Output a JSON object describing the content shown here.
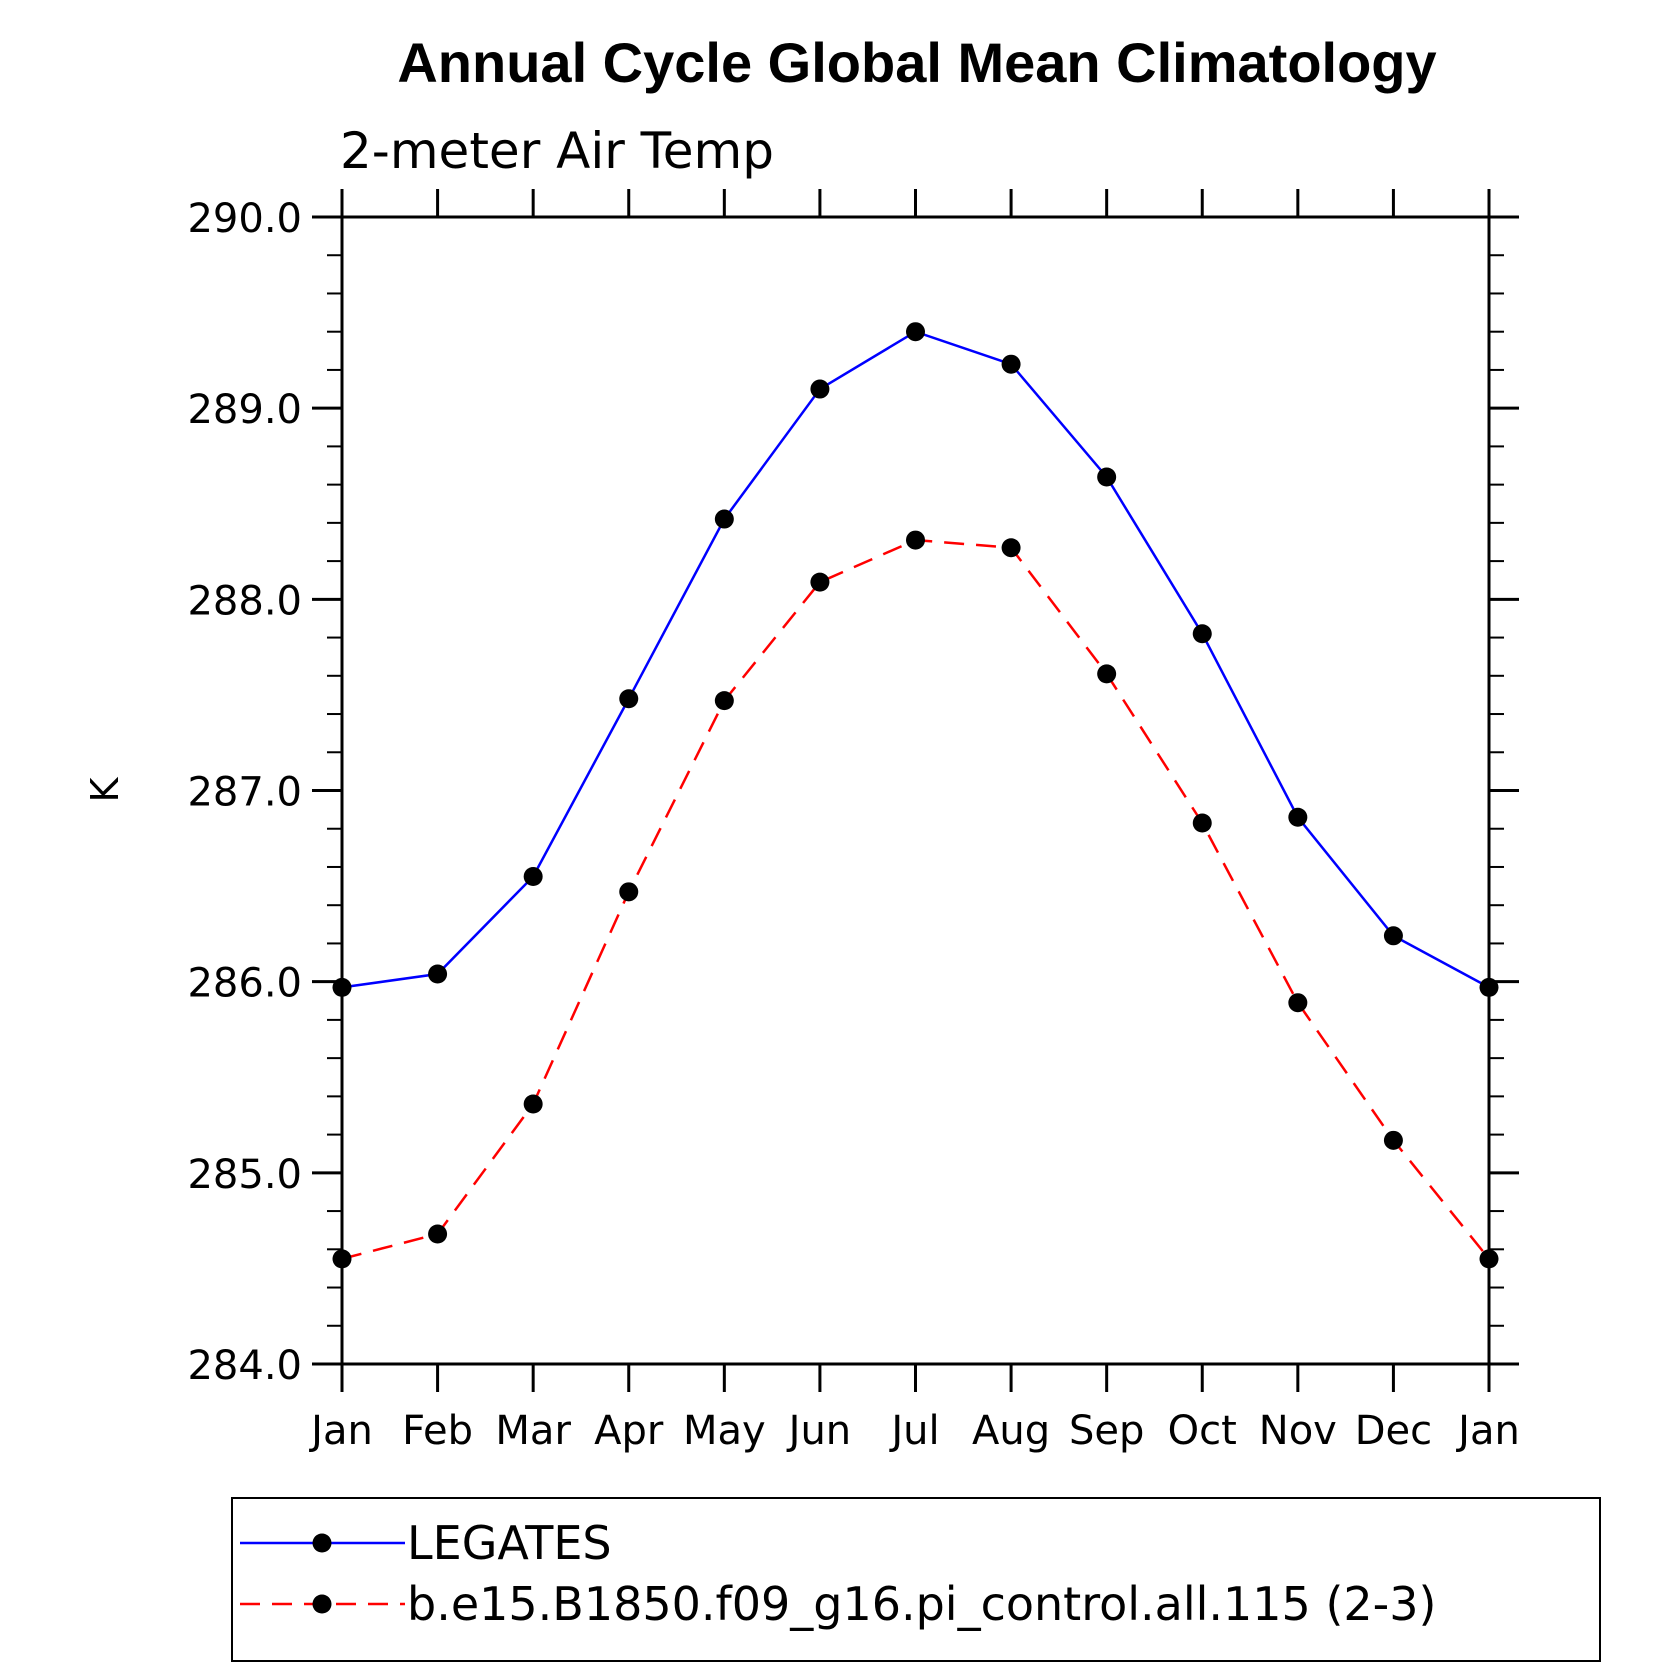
{
  "chart_data": {
    "type": "line",
    "title": "Annual Cycle Global Mean Climatology",
    "subtitle": "2-meter Air Temp",
    "ylabel": "K",
    "xlabel": "",
    "categories": [
      "Jan",
      "Feb",
      "Mar",
      "Apr",
      "May",
      "Jun",
      "Jul",
      "Aug",
      "Sep",
      "Oct",
      "Nov",
      "Dec",
      "Jan"
    ],
    "ylim": [
      284.0,
      290.0
    ],
    "yticks": [
      284.0,
      285.0,
      286.0,
      287.0,
      288.0,
      289.0,
      290.0
    ],
    "ytick_labels": [
      "284.0",
      "285.0",
      "286.0",
      "287.0",
      "288.0",
      "289.0",
      "290.0"
    ],
    "grid": false,
    "legend_position": "bottom",
    "series": [
      {
        "name": "LEGATES",
        "color": "#0000ff",
        "dash": "solid",
        "marker": "filled-circle",
        "values": [
          285.97,
          286.04,
          286.55,
          287.48,
          288.42,
          289.1,
          289.4,
          289.23,
          288.64,
          287.82,
          286.86,
          286.24,
          285.97
        ]
      },
      {
        "name": "b.e15.B1850.f09_g16.pi_control.all.115 (2-3)",
        "color": "#ff0000",
        "dash": "dashed",
        "marker": "filled-circle",
        "values": [
          284.55,
          284.68,
          285.36,
          286.47,
          287.47,
          288.09,
          288.31,
          288.27,
          287.61,
          286.83,
          285.89,
          285.17,
          284.55
        ]
      }
    ]
  }
}
